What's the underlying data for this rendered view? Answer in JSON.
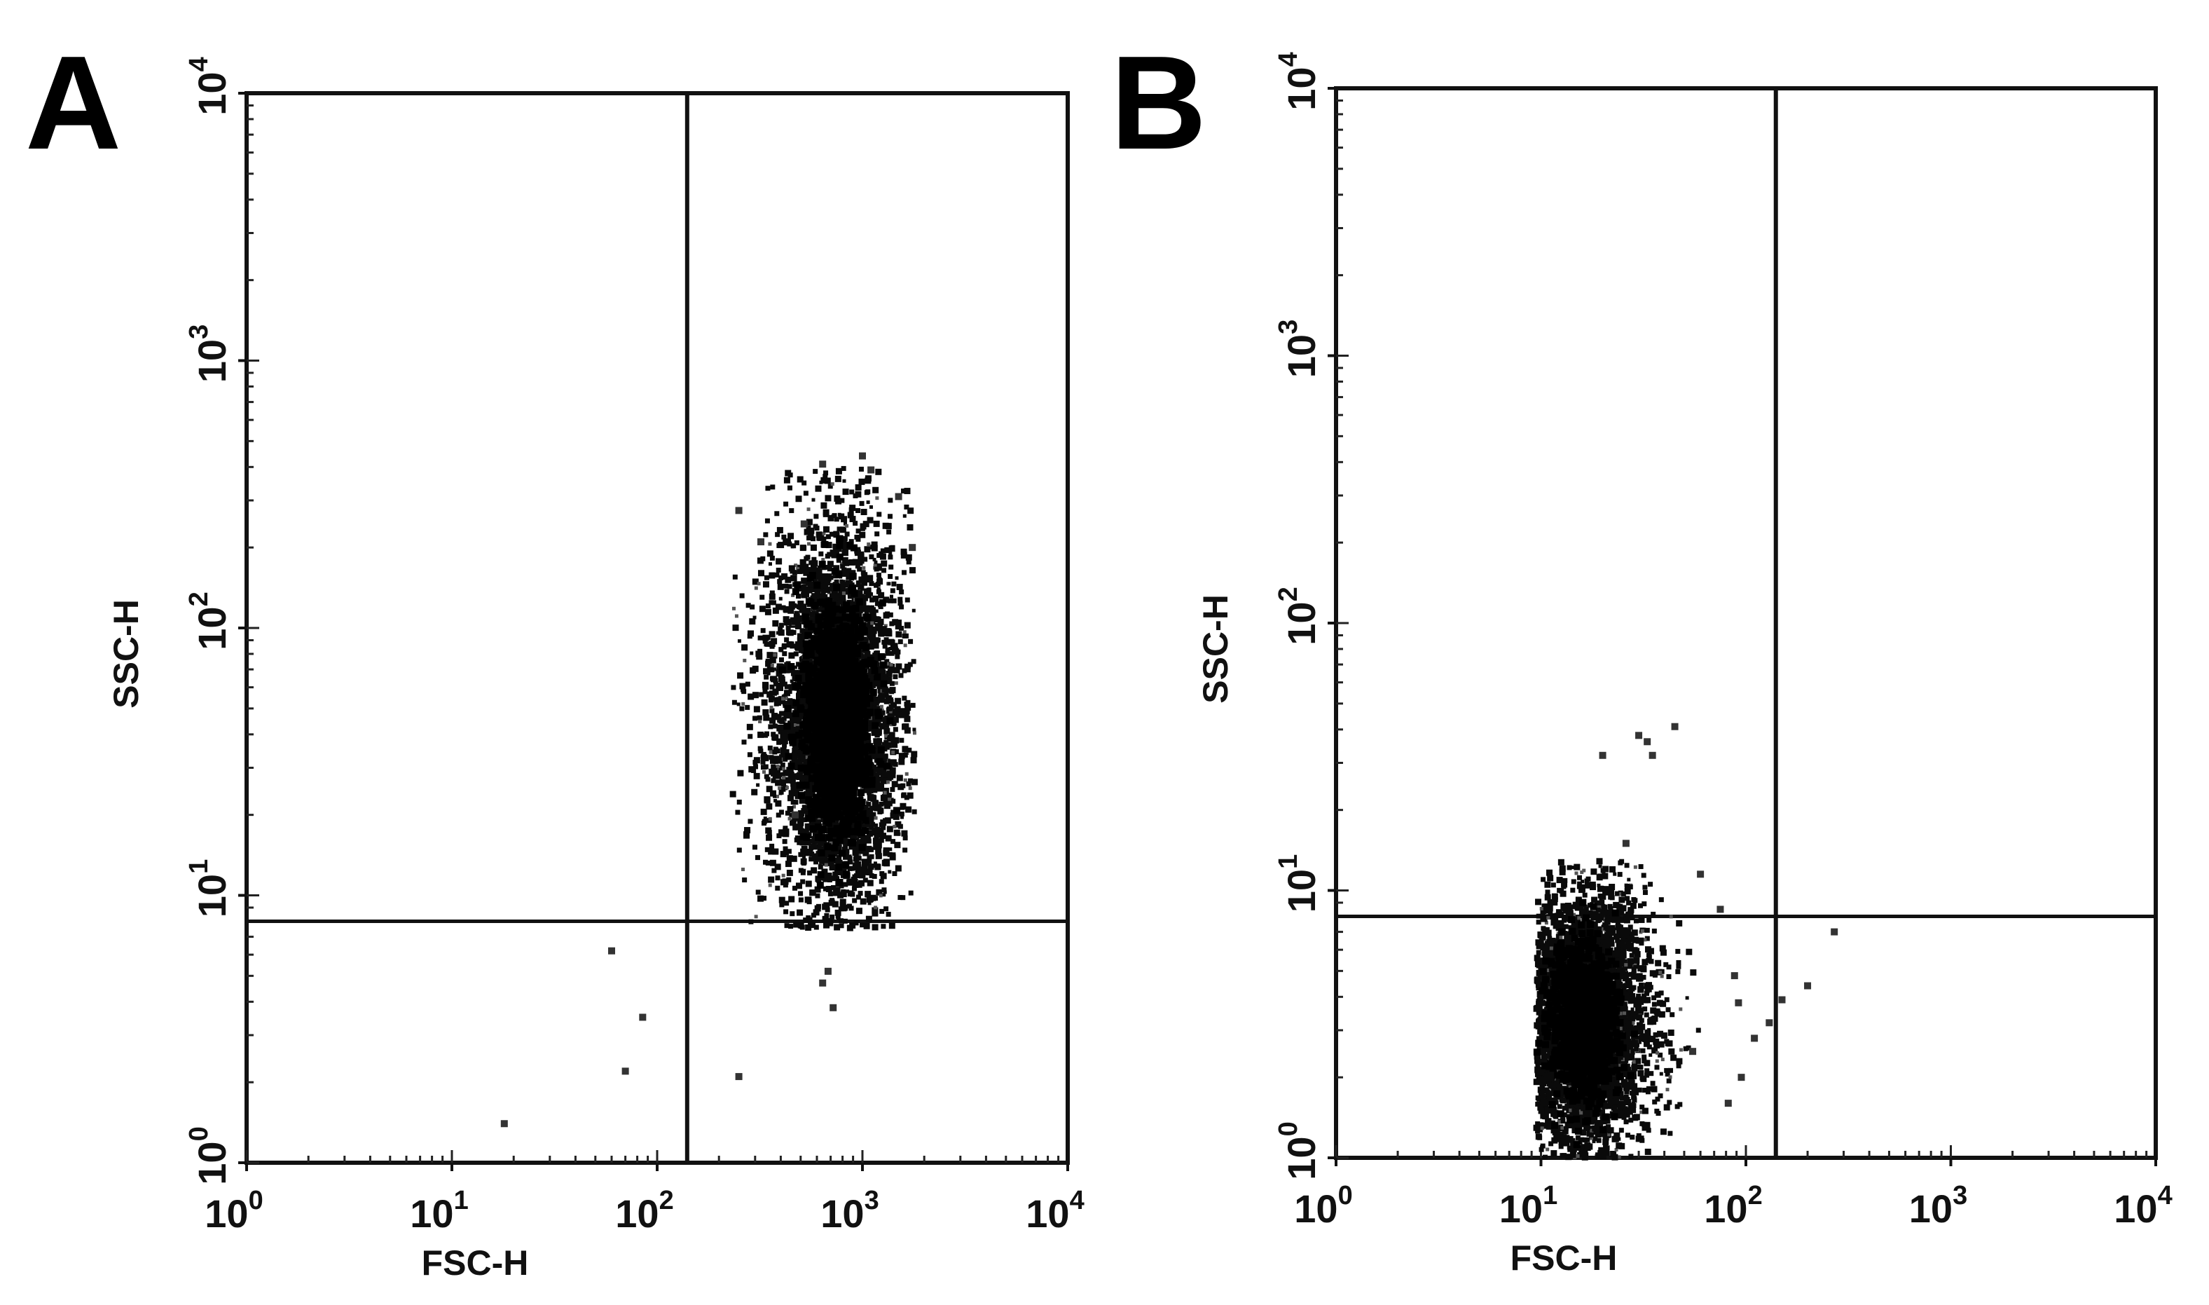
{
  "chart_data": [
    {
      "type": "scatter",
      "panel_label": "A",
      "xlabel": "FSC-H",
      "ylabel": "SSC-H",
      "xscale": "log",
      "yscale": "log",
      "xlim": [
        1,
        10000
      ],
      "ylim": [
        1,
        10000
      ],
      "x_ticks": [
        {
          "base": "10",
          "exp": "0"
        },
        {
          "base": "10",
          "exp": "1"
        },
        {
          "base": "10",
          "exp": "2"
        },
        {
          "base": "10",
          "exp": "3"
        },
        {
          "base": "10",
          "exp": "4"
        }
      ],
      "y_ticks": [
        {
          "base": "10",
          "exp": "0"
        },
        {
          "base": "10",
          "exp": "1"
        },
        {
          "base": "10",
          "exp": "2"
        },
        {
          "base": "10",
          "exp": "3"
        },
        {
          "base": "10",
          "exp": "4"
        }
      ],
      "quadrant_gate": {
        "x": 140,
        "y": 8
      },
      "grid": false,
      "legend": "none",
      "populations": [
        {
          "x_center": 750,
          "y_center": 45,
          "x_range": [
            230,
            1800
          ],
          "y_range": [
            7.5,
            400
          ],
          "density": "high"
        }
      ],
      "points": [
        [
          470,
          20
        ],
        [
          250,
          275
        ],
        [
          520,
          245
        ],
        [
          320,
          210
        ],
        [
          640,
          410
        ],
        [
          1000,
          440
        ],
        [
          60,
          6.2
        ],
        [
          85,
          3.5
        ],
        [
          70,
          2.2
        ],
        [
          18,
          1.4
        ],
        [
          250,
          2.1
        ],
        [
          640,
          4.7
        ],
        [
          720,
          3.8
        ],
        [
          680,
          5.2
        ],
        [
          1500,
          310
        ],
        [
          1750,
          200
        ],
        [
          1100,
          390
        ]
      ]
    },
    {
      "type": "scatter",
      "panel_label": "B",
      "xlabel": "FSC-H",
      "ylabel": "SSC-H",
      "xscale": "log",
      "yscale": "log",
      "xlim": [
        1,
        10000
      ],
      "ylim": [
        1,
        10000
      ],
      "x_ticks": [
        {
          "base": "10",
          "exp": "0"
        },
        {
          "base": "10",
          "exp": "1"
        },
        {
          "base": "10",
          "exp": "2"
        },
        {
          "base": "10",
          "exp": "3"
        },
        {
          "base": "10",
          "exp": "4"
        }
      ],
      "y_ticks": [
        {
          "base": "10",
          "exp": "0"
        },
        {
          "base": "10",
          "exp": "1"
        },
        {
          "base": "10",
          "exp": "2"
        },
        {
          "base": "10",
          "exp": "3"
        },
        {
          "base": "10",
          "exp": "4"
        }
      ],
      "quadrant_gate": {
        "x": 140,
        "y": 8
      },
      "grid": false,
      "legend": "none",
      "populations": [
        {
          "x_center": 16,
          "y_center": 3.2,
          "x_range": [
            9.5,
            70
          ],
          "y_range": [
            1,
            13
          ],
          "density": "high"
        }
      ],
      "points": [
        [
          30,
          38
        ],
        [
          33,
          36
        ],
        [
          45,
          41
        ],
        [
          20,
          32
        ],
        [
          35,
          32
        ],
        [
          26,
          15
        ],
        [
          88,
          4.8
        ],
        [
          92,
          3.8
        ],
        [
          130,
          3.2
        ],
        [
          200,
          4.4
        ],
        [
          270,
          7.0
        ],
        [
          75,
          8.5
        ],
        [
          82,
          1.6
        ],
        [
          110,
          2.8
        ],
        [
          150,
          3.9
        ],
        [
          60,
          11.5
        ],
        [
          55,
          2.5
        ],
        [
          95,
          2.0
        ]
      ]
    }
  ]
}
